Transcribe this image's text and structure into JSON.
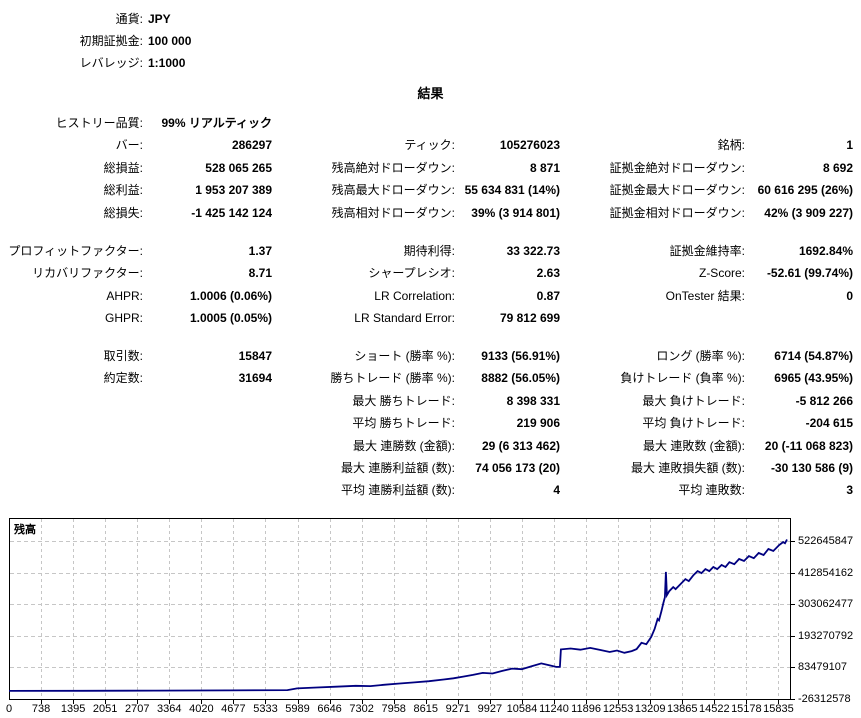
{
  "account": {
    "rows": [
      {
        "label": "通貨:",
        "value": "JPY"
      },
      {
        "label": "初期証拠金:",
        "value": "100 000"
      },
      {
        "label": "レバレッジ:",
        "value": "1:1000"
      }
    ]
  },
  "results_title": "結果",
  "sections": [
    {
      "name": "summary",
      "rows": [
        [
          "ヒストリー品質:",
          "99% リアルティック",
          "",
          "",
          "",
          ""
        ],
        [
          "バー:",
          "286297",
          "ティック:",
          "105276023",
          "銘柄:",
          "1"
        ],
        [
          "総損益:",
          "528 065 265",
          "残高絶対ドローダウン:",
          "8 871",
          "証拠金絶対ドローダウン:",
          "8 692"
        ],
        [
          "総利益:",
          "1 953 207 389",
          "残高最大ドローダウン:",
          "55 634 831 (14%)",
          "証拠金最大ドローダウン:",
          "60 616 295 (26%)"
        ],
        [
          "総損失:",
          "-1 425 142 124",
          "残高相対ドローダウン:",
          "39% (3 914 801)",
          "証拠金相対ドローダウン:",
          "42% (3 909 227)"
        ]
      ]
    },
    {
      "name": "ratios",
      "rows": [
        [
          "プロフィットファクター:",
          "1.37",
          "期待利得:",
          "33 322.73",
          "証拠金維持率:",
          "1692.84%"
        ],
        [
          "リカバリファクター:",
          "8.71",
          "シャープレシオ:",
          "2.63",
          "Z-Score:",
          "-52.61 (99.74%)"
        ],
        [
          "AHPR:",
          "1.0006 (0.06%)",
          "LR Correlation:",
          "0.87",
          "OnTester 結果:",
          "0"
        ],
        [
          "GHPR:",
          "1.0005 (0.05%)",
          "LR Standard Error:",
          "79 812 699",
          "",
          ""
        ]
      ]
    },
    {
      "name": "trades",
      "rows": [
        [
          "取引数:",
          "15847",
          "ショート (勝率 %):",
          "9133 (56.91%)",
          "ロング (勝率 %):",
          "6714 (54.87%)"
        ],
        [
          "約定数:",
          "31694",
          "勝ちトレード (勝率 %):",
          "8882 (56.05%)",
          "負けトレード (負率 %):",
          "6965 (43.95%)"
        ],
        [
          "",
          "",
          "最大 勝ちトレード:",
          "8 398 331",
          "最大 負けトレード:",
          "-5 812 266"
        ],
        [
          "",
          "",
          "平均 勝ちトレード:",
          "219 906",
          "平均 負けトレード:",
          "-204 615"
        ],
        [
          "",
          "",
          "最大 連勝数 (金額):",
          "29 (6 313 462)",
          "最大 連敗数 (金額):",
          "20 (-11 068 823)"
        ],
        [
          "",
          "",
          "最大 連勝利益額 (数):",
          "74 056 173 (20)",
          "最大 連敗損失額 (数):",
          "-30 130 586 (9)"
        ],
        [
          "",
          "",
          "平均 連勝利益額 (数):",
          "4",
          "平均 連敗数:",
          "3"
        ]
      ]
    }
  ],
  "chart_data": {
    "type": "line",
    "title": "残高",
    "xlabel": "",
    "ylabel": "",
    "grid": "dashed",
    "grid_color": "#c6c6c6",
    "line_color": "#000080",
    "xlim": [
      0,
      15930
    ],
    "ylim": [
      -31500000,
      603000000
    ],
    "x_ticks": [
      "0",
      "738",
      "1395",
      "2051",
      "2707",
      "3364",
      "4020",
      "4677",
      "5333",
      "5989",
      "6646",
      "7302",
      "7958",
      "8615",
      "9271",
      "9927",
      "10584",
      "11240",
      "11896",
      "12553",
      "13209",
      "13865",
      "14522",
      "15178",
      "15835"
    ],
    "y_ticks": [
      {
        "value": 522645847,
        "label": "522645847"
      },
      {
        "value": 412854162,
        "label": "412854162"
      },
      {
        "value": 303062477,
        "label": "303062477"
      },
      {
        "value": 193270792,
        "label": "193270792"
      },
      {
        "value": 83479107,
        "label": "83479107"
      },
      {
        "value": -26312578,
        "label": "-26312578"
      }
    ],
    "series": [
      {
        "name": "残高",
        "points": [
          [
            0,
            100000
          ],
          [
            1500,
            500000
          ],
          [
            3000,
            1200000
          ],
          [
            4500,
            2000000
          ],
          [
            5700,
            3000000
          ],
          [
            5900,
            9000000
          ],
          [
            6300,
            12000000
          ],
          [
            6700,
            15000000
          ],
          [
            7100,
            18000000
          ],
          [
            7400,
            17000000
          ],
          [
            7700,
            22000000
          ],
          [
            8000,
            26000000
          ],
          [
            8300,
            30000000
          ],
          [
            8600,
            34000000
          ],
          [
            8900,
            40000000
          ],
          [
            9100,
            44000000
          ],
          [
            9300,
            50000000
          ],
          [
            9500,
            56000000
          ],
          [
            9700,
            63000000
          ],
          [
            9900,
            61000000
          ],
          [
            10100,
            70000000
          ],
          [
            10300,
            78000000
          ],
          [
            10500,
            76000000
          ],
          [
            10700,
            86000000
          ],
          [
            10900,
            96000000
          ],
          [
            11050,
            90000000
          ],
          [
            11200,
            84000000
          ],
          [
            11280,
            84000000
          ],
          [
            11300,
            145000000
          ],
          [
            11500,
            148000000
          ],
          [
            11700,
            144000000
          ],
          [
            11900,
            150000000
          ],
          [
            12100,
            143000000
          ],
          [
            12300,
            136000000
          ],
          [
            12450,
            141000000
          ],
          [
            12600,
            133000000
          ],
          [
            12750,
            139000000
          ],
          [
            12850,
            146000000
          ],
          [
            12950,
            168000000
          ],
          [
            13050,
            163000000
          ],
          [
            13150,
            188000000
          ],
          [
            13220,
            216000000
          ],
          [
            13280,
            251000000
          ],
          [
            13310,
            246000000
          ],
          [
            13360,
            279000000
          ],
          [
            13400,
            307000000
          ],
          [
            13430,
            327000000
          ],
          [
            13450,
            415000000
          ],
          [
            13470,
            334000000
          ],
          [
            13520,
            348000000
          ],
          [
            13600,
            362000000
          ],
          [
            13650,
            355000000
          ],
          [
            13770,
            376000000
          ],
          [
            13850,
            390000000
          ],
          [
            13920,
            383000000
          ],
          [
            14015,
            404000000
          ],
          [
            14100,
            418000000
          ],
          [
            14180,
            411000000
          ],
          [
            14260,
            425000000
          ],
          [
            14340,
            418000000
          ],
          [
            14420,
            432000000
          ],
          [
            14500,
            425000000
          ],
          [
            14590,
            439000000
          ],
          [
            14670,
            432000000
          ],
          [
            14750,
            449000000
          ],
          [
            14850,
            442000000
          ],
          [
            14950,
            460000000
          ],
          [
            15050,
            453000000
          ],
          [
            15150,
            470000000
          ],
          [
            15250,
            463000000
          ],
          [
            15350,
            481000000
          ],
          [
            15450,
            474000000
          ],
          [
            15550,
            495000000
          ],
          [
            15650,
            488000000
          ],
          [
            15770,
            509000000
          ],
          [
            15850,
            519000000
          ],
          [
            15890,
            515000000
          ],
          [
            15930,
            528165265
          ]
        ]
      }
    ]
  }
}
